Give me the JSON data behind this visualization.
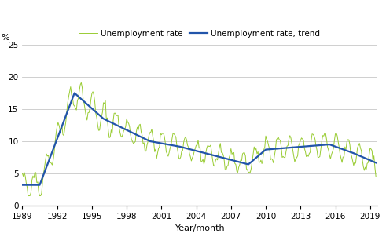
{
  "ylabel": "%",
  "xlabel": "Year/month",
  "legend_rate": "Unemployment rate",
  "legend_trend": "Unemployment rate, trend",
  "rate_color": "#99cc33",
  "trend_color": "#2255aa",
  "ylim": [
    0,
    25
  ],
  "yticks": [
    0,
    5,
    10,
    15,
    20,
    25
  ],
  "xtick_years": [
    1989,
    1992,
    1995,
    1998,
    2001,
    2004,
    2007,
    2010,
    2013,
    2016,
    2019
  ],
  "grid_color": "#c8c8c8",
  "background_color": "#ffffff",
  "rate_linewidth": 0.7,
  "trend_linewidth": 1.6,
  "xlim_start": 1989.0,
  "xlim_end": 2019.65
}
